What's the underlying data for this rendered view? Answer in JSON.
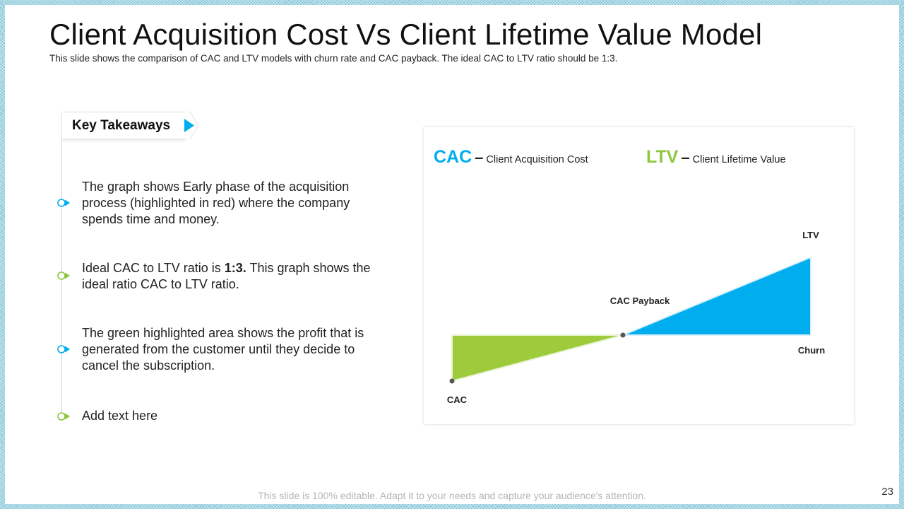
{
  "slide": {
    "title": "Client Acquisition Cost Vs Client Lifetime Value Model",
    "subtitle": "This slide shows the comparison of CAC and LTV models with churn rate and CAC payback. The ideal CAC to LTV ratio should be 1:3.",
    "footer": "This slide is 100% editable. Adapt it to your needs and capture your audience's attention.",
    "page_number": "23"
  },
  "takeaways": {
    "heading": "Key Takeaways",
    "items": [
      {
        "text": "The graph shows Early phase of the acquisition process (highlighted in red) where the company spends time and money.",
        "accent": "#00aeef"
      },
      {
        "pre": "Ideal CAC to LTV ratio is ",
        "bold": "1:3.",
        "post": " This graph shows the ideal ratio CAC to LTV ratio.",
        "accent": "#8dc63f"
      },
      {
        "text": "The green highlighted area shows the profit that is generated from the customer until they decide to cancel the subscription.",
        "accent": "#00aeef"
      },
      {
        "text": "Add text here",
        "accent": "#8dc63f"
      }
    ]
  },
  "legend": {
    "cac_abbr": "CAC",
    "cac_desc": "Client Acquisition Cost",
    "ltv_abbr": "LTV",
    "ltv_desc": "Client Lifetime Value"
  },
  "diagram": {
    "labels": {
      "ltv": "LTV",
      "cac_payback": "CAC Payback",
      "churn": "Churn",
      "cac": "CAC"
    }
  },
  "colors": {
    "blue": "#00aeef",
    "green": "#9dcb3b",
    "dot": "#555555"
  }
}
